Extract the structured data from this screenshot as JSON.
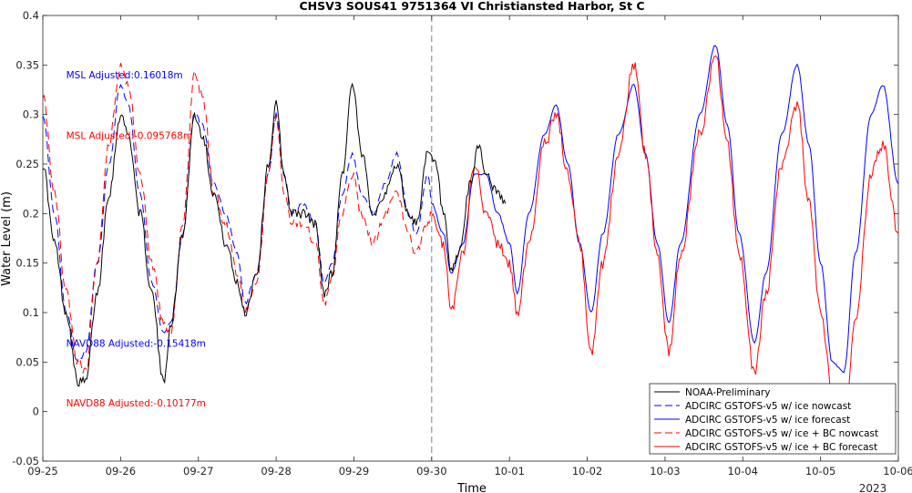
{
  "chart_data": {
    "type": "line",
    "title": "CHSV3 SOUS41 9751364 VI Christiansted Harbor, St C",
    "xlabel": "Time",
    "ylabel": "Water Level (m)",
    "x_year_label": "2023",
    "xlim": [
      0,
      11
    ],
    "ylim": [
      -0.05,
      0.4
    ],
    "x_tick_values": [
      0,
      1,
      2,
      3,
      4,
      5,
      6,
      7,
      8,
      9,
      10,
      11
    ],
    "x_tick_labels": [
      "09-25",
      "09-26",
      "09-27",
      "09-28",
      "09-29",
      "09-30",
      "10-01",
      "10-02",
      "10-03",
      "10-04",
      "10-05",
      "10-06"
    ],
    "y_tick_values": [
      -0.05,
      0,
      0.05,
      0.1,
      0.15,
      0.2,
      0.25,
      0.3,
      0.35,
      0.4
    ],
    "y_tick_labels": [
      "-0.05",
      "0",
      "0.05",
      "0.1",
      "0.15",
      "0.2",
      "0.25",
      "0.3",
      "0.35",
      "0.4"
    ],
    "grid": false,
    "legend_position": "bottom-right",
    "nowcast_boundary_x": 5.0,
    "colors": {
      "black": "#000000",
      "blue": "#0000ff",
      "red": "#ff0000",
      "axis": "#262626",
      "boundary": "#808080"
    },
    "annotations": [
      {
        "text": "MSL Adjusted:0.16018m",
        "color": "#0000ff",
        "x": 0.3,
        "y": 0.34
      },
      {
        "text": "MSL Adjusted:-0.095768m",
        "color": "#ff0000",
        "x": 0.3,
        "y": 0.279
      },
      {
        "text": "NAVD88 Adjusted:-0.15418m",
        "color": "#0000ff",
        "x": 0.3,
        "y": 0.069
      },
      {
        "text": "NAVD88 Adjusted:-0.10177m",
        "color": "#ff0000",
        "x": 0.3,
        "y": 0.009
      }
    ],
    "series": [
      {
        "name": "NOAA-Preliminary",
        "color": "#000000",
        "dash": "solid",
        "noise": 0.005,
        "points": [
          [
            0.0,
            0.25
          ],
          [
            0.15,
            0.17
          ],
          [
            0.3,
            0.1
          ],
          [
            0.45,
            0.03
          ],
          [
            0.55,
            0.03
          ],
          [
            0.7,
            0.12
          ],
          [
            0.85,
            0.22
          ],
          [
            1.0,
            0.3
          ],
          [
            1.1,
            0.28
          ],
          [
            1.25,
            0.2
          ],
          [
            1.4,
            0.12
          ],
          [
            1.55,
            0.03
          ],
          [
            1.65,
            0.09
          ],
          [
            1.8,
            0.18
          ],
          [
            1.95,
            0.3
          ],
          [
            2.05,
            0.28
          ],
          [
            2.2,
            0.22
          ],
          [
            2.35,
            0.17
          ],
          [
            2.5,
            0.13
          ],
          [
            2.6,
            0.1
          ],
          [
            2.75,
            0.14
          ],
          [
            2.9,
            0.25
          ],
          [
            3.0,
            0.31
          ],
          [
            3.1,
            0.24
          ],
          [
            3.2,
            0.2
          ],
          [
            3.35,
            0.2
          ],
          [
            3.5,
            0.19
          ],
          [
            3.62,
            0.12
          ],
          [
            3.72,
            0.14
          ],
          [
            3.85,
            0.24
          ],
          [
            3.98,
            0.33
          ],
          [
            4.1,
            0.26
          ],
          [
            4.25,
            0.2
          ],
          [
            4.4,
            0.22
          ],
          [
            4.55,
            0.25
          ],
          [
            4.7,
            0.2
          ],
          [
            4.8,
            0.19
          ],
          [
            4.95,
            0.26
          ],
          [
            5.05,
            0.25
          ],
          [
            5.15,
            0.2
          ],
          [
            5.25,
            0.14
          ],
          [
            5.35,
            0.16
          ],
          [
            5.5,
            0.23
          ],
          [
            5.6,
            0.27
          ],
          [
            5.7,
            0.24
          ],
          [
            5.85,
            0.22
          ],
          [
            5.95,
            0.21
          ]
        ]
      },
      {
        "name": "ADCIRC GSTOFS-v5 w/ ice nowcast",
        "color": "#0000ff",
        "dash": "dashed",
        "noise": 0.002,
        "points": [
          [
            0.0,
            0.3
          ],
          [
            0.15,
            0.2
          ],
          [
            0.3,
            0.1
          ],
          [
            0.45,
            0.05
          ],
          [
            0.55,
            0.06
          ],
          [
            0.7,
            0.15
          ],
          [
            0.85,
            0.25
          ],
          [
            1.0,
            0.33
          ],
          [
            1.1,
            0.31
          ],
          [
            1.25,
            0.22
          ],
          [
            1.4,
            0.13
          ],
          [
            1.55,
            0.08
          ],
          [
            1.65,
            0.09
          ],
          [
            1.8,
            0.18
          ],
          [
            1.95,
            0.3
          ],
          [
            2.05,
            0.29
          ],
          [
            2.2,
            0.23
          ],
          [
            2.35,
            0.2
          ],
          [
            2.5,
            0.16
          ],
          [
            2.6,
            0.11
          ],
          [
            2.75,
            0.14
          ],
          [
            2.9,
            0.24
          ],
          [
            3.0,
            0.3
          ],
          [
            3.1,
            0.24
          ],
          [
            3.2,
            0.2
          ],
          [
            3.35,
            0.21
          ],
          [
            3.5,
            0.19
          ],
          [
            3.62,
            0.13
          ],
          [
            3.72,
            0.15
          ],
          [
            3.85,
            0.22
          ],
          [
            3.98,
            0.26
          ],
          [
            4.1,
            0.22
          ],
          [
            4.25,
            0.2
          ],
          [
            4.4,
            0.23
          ],
          [
            4.55,
            0.26
          ],
          [
            4.7,
            0.2
          ],
          [
            4.8,
            0.18
          ],
          [
            4.95,
            0.24
          ],
          [
            5.0,
            0.21
          ]
        ]
      },
      {
        "name": "ADCIRC GSTOFS-v5 w/ ice forecast",
        "color": "#0000ff",
        "dash": "solid",
        "noise": 0.001,
        "points": [
          [
            5.0,
            0.21
          ],
          [
            5.15,
            0.18
          ],
          [
            5.25,
            0.14
          ],
          [
            5.4,
            0.17
          ],
          [
            5.55,
            0.24
          ],
          [
            5.7,
            0.24
          ],
          [
            5.85,
            0.2
          ],
          [
            6.0,
            0.17
          ],
          [
            6.1,
            0.12
          ],
          [
            6.25,
            0.2
          ],
          [
            6.45,
            0.28
          ],
          [
            6.6,
            0.31
          ],
          [
            6.75,
            0.25
          ],
          [
            6.9,
            0.17
          ],
          [
            7.05,
            0.1
          ],
          [
            7.2,
            0.18
          ],
          [
            7.4,
            0.28
          ],
          [
            7.6,
            0.33
          ],
          [
            7.75,
            0.26
          ],
          [
            7.9,
            0.17
          ],
          [
            8.05,
            0.09
          ],
          [
            8.2,
            0.17
          ],
          [
            8.45,
            0.3
          ],
          [
            8.65,
            0.37
          ],
          [
            8.8,
            0.29
          ],
          [
            8.95,
            0.18
          ],
          [
            9.15,
            0.07
          ],
          [
            9.3,
            0.14
          ],
          [
            9.5,
            0.28
          ],
          [
            9.7,
            0.35
          ],
          [
            9.85,
            0.27
          ],
          [
            10.0,
            0.15
          ],
          [
            10.15,
            0.05
          ],
          [
            10.3,
            0.04
          ],
          [
            10.45,
            0.16
          ],
          [
            10.65,
            0.3
          ],
          [
            10.8,
            0.33
          ],
          [
            11.0,
            0.23
          ]
        ]
      },
      {
        "name": "ADCIRC GSTOFS-v5 w/ ice + BC nowcast",
        "color": "#ff0000",
        "dash": "dashed",
        "noise": 0.005,
        "points": [
          [
            0.0,
            0.32
          ],
          [
            0.15,
            0.22
          ],
          [
            0.3,
            0.12
          ],
          [
            0.45,
            0.05
          ],
          [
            0.55,
            0.04
          ],
          [
            0.7,
            0.15
          ],
          [
            0.85,
            0.27
          ],
          [
            1.0,
            0.35
          ],
          [
            1.1,
            0.33
          ],
          [
            1.25,
            0.24
          ],
          [
            1.4,
            0.15
          ],
          [
            1.55,
            0.09
          ],
          [
            1.65,
            0.08
          ],
          [
            1.8,
            0.19
          ],
          [
            1.95,
            0.34
          ],
          [
            2.05,
            0.32
          ],
          [
            2.2,
            0.22
          ],
          [
            2.35,
            0.19
          ],
          [
            2.5,
            0.14
          ],
          [
            2.6,
            0.1
          ],
          [
            2.75,
            0.13
          ],
          [
            2.9,
            0.24
          ],
          [
            3.0,
            0.3
          ],
          [
            3.1,
            0.22
          ],
          [
            3.2,
            0.19
          ],
          [
            3.35,
            0.19
          ],
          [
            3.5,
            0.17
          ],
          [
            3.62,
            0.11
          ],
          [
            3.72,
            0.14
          ],
          [
            3.85,
            0.2
          ],
          [
            3.98,
            0.24
          ],
          [
            4.1,
            0.2
          ],
          [
            4.25,
            0.17
          ],
          [
            4.4,
            0.2
          ],
          [
            4.55,
            0.22
          ],
          [
            4.7,
            0.18
          ],
          [
            4.8,
            0.16
          ],
          [
            4.95,
            0.19
          ],
          [
            5.0,
            0.2
          ]
        ]
      },
      {
        "name": "ADCIRC GSTOFS-v5 w/ ice + BC forecast",
        "color": "#ff0000",
        "dash": "solid",
        "noise": 0.006,
        "points": [
          [
            5.0,
            0.2
          ],
          [
            5.15,
            0.17
          ],
          [
            5.25,
            0.1
          ],
          [
            5.4,
            0.16
          ],
          [
            5.55,
            0.25
          ],
          [
            5.7,
            0.2
          ],
          [
            5.85,
            0.17
          ],
          [
            6.0,
            0.15
          ],
          [
            6.1,
            0.1
          ],
          [
            6.25,
            0.17
          ],
          [
            6.45,
            0.27
          ],
          [
            6.6,
            0.3
          ],
          [
            6.75,
            0.24
          ],
          [
            6.9,
            0.17
          ],
          [
            7.05,
            0.06
          ],
          [
            7.2,
            0.15
          ],
          [
            7.4,
            0.26
          ],
          [
            7.6,
            0.35
          ],
          [
            7.75,
            0.26
          ],
          [
            7.9,
            0.16
          ],
          [
            8.05,
            0.06
          ],
          [
            8.2,
            0.16
          ],
          [
            8.45,
            0.28
          ],
          [
            8.65,
            0.36
          ],
          [
            8.8,
            0.27
          ],
          [
            8.95,
            0.16
          ],
          [
            9.15,
            0.04
          ],
          [
            9.3,
            0.12
          ],
          [
            9.5,
            0.25
          ],
          [
            9.7,
            0.31
          ],
          [
            9.85,
            0.21
          ],
          [
            10.0,
            0.1
          ],
          [
            10.15,
            0.02
          ],
          [
            10.3,
            -0.02
          ],
          [
            10.45,
            0.09
          ],
          [
            10.65,
            0.24
          ],
          [
            10.8,
            0.27
          ],
          [
            11.0,
            0.18
          ]
        ]
      }
    ]
  }
}
